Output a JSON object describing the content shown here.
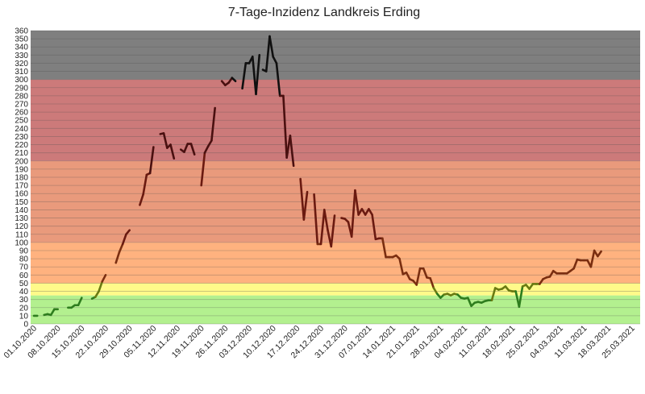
{
  "chart_data": {
    "type": "line",
    "title": "7-Tage-Inzidenz Landkreis Erding",
    "xlabel": "",
    "ylabel": "",
    "ylim": [
      0,
      360
    ],
    "y_ticks": [
      0,
      10,
      20,
      30,
      40,
      50,
      60,
      70,
      80,
      90,
      100,
      110,
      120,
      130,
      140,
      150,
      160,
      170,
      180,
      190,
      200,
      210,
      220,
      230,
      240,
      250,
      260,
      270,
      280,
      290,
      300,
      310,
      320,
      330,
      340,
      350,
      360
    ],
    "x_tick_labels": [
      "01.10.2020",
      "08.10.2020",
      "15.10.2020",
      "22.10.2020",
      "29.10.2020",
      "05.11.2020",
      "12.11.2020",
      "19.11.2020",
      "26.11.2020",
      "03.12.2020",
      "10.12.2020",
      "17.12.2020",
      "24.12.2020",
      "31.12.2020",
      "07.01.2021",
      "14.01.2021",
      "21.01.2021",
      "28.01.2021",
      "04.02.2021",
      "11.02.2021",
      "18.02.2021",
      "25.02.2021",
      "04.03.2021",
      "11.03.2021",
      "18.03.2021",
      "25.03.2021"
    ],
    "grid": true,
    "legend": "none",
    "bands": [
      {
        "from": 0,
        "to": 35,
        "color": "#b3f08f"
      },
      {
        "from": 35,
        "to": 50,
        "color": "#fffa8a"
      },
      {
        "from": 50,
        "to": 100,
        "color": "#ffb27f"
      },
      {
        "from": 100,
        "to": 200,
        "color": "#e99a7c"
      },
      {
        "from": 200,
        "to": 300,
        "color": "#cc7a7a"
      },
      {
        "from": 300,
        "to": 360,
        "color": "#7f7f7f"
      }
    ],
    "segments": [
      [
        [
          0,
          10
        ],
        [
          1,
          10
        ]
      ],
      [
        [
          3,
          11
        ],
        [
          4,
          12
        ],
        [
          5,
          11
        ],
        [
          6,
          18
        ],
        [
          7,
          18
        ]
      ],
      [
        [
          10,
          20
        ],
        [
          11,
          20
        ],
        [
          12,
          23
        ],
        [
          13,
          23
        ],
        [
          14,
          32
        ]
      ],
      [
        [
          17,
          31
        ],
        [
          18,
          33
        ],
        [
          19,
          40
        ],
        [
          20,
          52
        ],
        [
          21,
          60
        ]
      ],
      [
        [
          24,
          75
        ],
        [
          25,
          88
        ],
        [
          26,
          98
        ],
        [
          27,
          110
        ],
        [
          28,
          115
        ]
      ],
      [
        [
          31,
          146
        ],
        [
          32,
          159
        ],
        [
          33,
          183
        ],
        [
          34,
          185
        ],
        [
          35,
          217
        ]
      ],
      [
        [
          37,
          233
        ],
        [
          38,
          234
        ],
        [
          39,
          216
        ],
        [
          40,
          220
        ],
        [
          41,
          203
        ]
      ],
      [
        [
          43,
          214
        ],
        [
          44,
          211
        ],
        [
          45,
          221
        ],
        [
          46,
          221
        ],
        [
          47,
          208
        ]
      ],
      [
        [
          49,
          170
        ],
        [
          50,
          210
        ],
        [
          51,
          218
        ],
        [
          52,
          225
        ],
        [
          53,
          265
        ]
      ],
      [
        [
          55,
          298
        ],
        [
          56,
          293
        ],
        [
          57,
          296
        ],
        [
          58,
          302
        ],
        [
          59,
          298
        ]
      ],
      [
        [
          61,
          289
        ],
        [
          62,
          320
        ],
        [
          63,
          320
        ],
        [
          64,
          328
        ],
        [
          65,
          282
        ],
        [
          66,
          330
        ]
      ],
      [
        [
          67,
          312
        ],
        [
          68,
          310
        ],
        [
          69,
          353
        ],
        [
          70,
          328
        ],
        [
          71,
          320
        ],
        [
          72,
          280
        ],
        [
          73,
          280
        ],
        [
          74,
          204
        ],
        [
          75,
          231
        ],
        [
          76,
          194
        ]
      ],
      [
        [
          78,
          178
        ],
        [
          79,
          128
        ],
        [
          80,
          162
        ]
      ],
      [
        [
          82,
          159
        ],
        [
          83,
          98
        ],
        [
          84,
          98
        ],
        [
          85,
          140
        ],
        [
          86,
          115
        ],
        [
          87,
          95
        ],
        [
          88,
          133
        ]
      ],
      [
        [
          90,
          130
        ],
        [
          91,
          129
        ],
        [
          92,
          125
        ],
        [
          93,
          107
        ],
        [
          94,
          164
        ],
        [
          95,
          134
        ],
        [
          96,
          141
        ],
        [
          97,
          134
        ],
        [
          98,
          141
        ],
        [
          99,
          134
        ],
        [
          100,
          104
        ],
        [
          101,
          105
        ],
        [
          102,
          105
        ],
        [
          103,
          82
        ],
        [
          104,
          82
        ],
        [
          105,
          82
        ],
        [
          106,
          84
        ],
        [
          107,
          80
        ],
        [
          108,
          61
        ],
        [
          109,
          63
        ],
        [
          110,
          55
        ],
        [
          111,
          53
        ],
        [
          112,
          48
        ],
        [
          113,
          68
        ],
        [
          114,
          68
        ],
        [
          115,
          57
        ],
        [
          116,
          56
        ],
        [
          117,
          44
        ],
        [
          118,
          37
        ],
        [
          119,
          32
        ],
        [
          120,
          36
        ],
        [
          121,
          37
        ],
        [
          122,
          35
        ],
        [
          123,
          37
        ],
        [
          124,
          36
        ],
        [
          125,
          32
        ],
        [
          126,
          31
        ],
        [
          127,
          32
        ],
        [
          128,
          22
        ],
        [
          129,
          26
        ],
        [
          130,
          27
        ],
        [
          131,
          26
        ],
        [
          132,
          28
        ],
        [
          133,
          29
        ],
        [
          134,
          29
        ],
        [
          135,
          44
        ],
        [
          136,
          42
        ],
        [
          137,
          43
        ],
        [
          138,
          46
        ],
        [
          139,
          41
        ],
        [
          140,
          40
        ],
        [
          141,
          40
        ],
        [
          142,
          21
        ],
        [
          143,
          46
        ],
        [
          144,
          48
        ],
        [
          145,
          43
        ],
        [
          146,
          49
        ],
        [
          147,
          49
        ],
        [
          148,
          49
        ],
        [
          149,
          55
        ],
        [
          150,
          57
        ],
        [
          151,
          58
        ],
        [
          152,
          65
        ],
        [
          153,
          62
        ],
        [
          154,
          62
        ],
        [
          155,
          62
        ],
        [
          156,
          62
        ],
        [
          157,
          65
        ],
        [
          158,
          68
        ],
        [
          159,
          79
        ],
        [
          160,
          78
        ],
        [
          161,
          78
        ],
        [
          162,
          78
        ],
        [
          163,
          70
        ],
        [
          164,
          90
        ],
        [
          165,
          83
        ],
        [
          166,
          89
        ]
      ]
    ]
  }
}
